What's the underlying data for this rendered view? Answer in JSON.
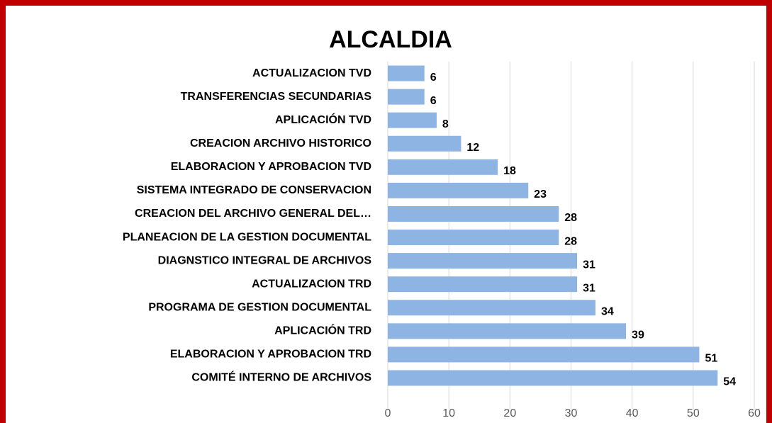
{
  "chart_data": {
    "type": "bar",
    "orientation": "horizontal",
    "title": "ALCALDIA",
    "categories": [
      "ACTUALIZACION TVD",
      "TRANSFERENCIAS SECUNDARIAS",
      "APLICACIÓN TVD",
      "CREACION ARCHIVO HISTORICO",
      "ELABORACION Y APROBACION TVD",
      "SISTEMA INTEGRADO DE CONSERVACION",
      "CREACION DEL ARCHIVO GENERAL DEL…",
      "PLANEACION DE LA GESTION DOCUMENTAL",
      "DIAGNSTICO INTEGRAL DE ARCHIVOS",
      "ACTUALIZACION TRD",
      "PROGRAMA DE GESTION DOCUMENTAL",
      "APLICACIÓN TRD",
      "ELABORACION Y APROBACION  TRD",
      "COMITÉ INTERNO DE ARCHIVOS"
    ],
    "values": [
      6,
      6,
      8,
      12,
      18,
      23,
      28,
      28,
      31,
      31,
      34,
      39,
      51,
      54
    ],
    "color": "#8db4e2",
    "xlim": [
      0,
      60
    ],
    "xticks": [
      0,
      10,
      20,
      30,
      40,
      50,
      60
    ],
    "grid": true
  }
}
